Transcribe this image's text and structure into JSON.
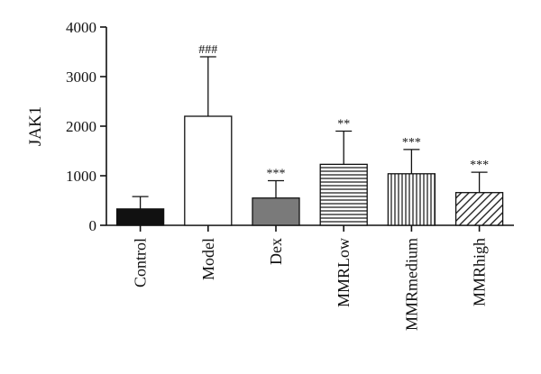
{
  "chart_data": {
    "type": "bar",
    "categories": [
      "Control",
      "Model",
      "Dex",
      "MMRLow",
      "MMRmedium",
      "MMRhigh"
    ],
    "values": [
      330,
      2200,
      550,
      1230,
      1040,
      660
    ],
    "error_upper": [
      580,
      3400,
      900,
      1900,
      1530,
      1070
    ],
    "annotations": [
      "",
      "###",
      "***",
      "**",
      "***",
      "***"
    ],
    "fills": [
      "solid-black",
      "white",
      "solid-gray",
      "horizontal-lines",
      "vertical-lines",
      "diagonal-lines"
    ],
    "colors": {
      "black": "#111111",
      "gray": "#7a7a7a"
    },
    "title": "",
    "xlabel": "",
    "ylabel": "JAK1",
    "ylim": [
      0,
      4000
    ],
    "yticks": [
      0,
      1000,
      2000,
      3000,
      4000
    ],
    "grid": false,
    "legend": "none"
  }
}
